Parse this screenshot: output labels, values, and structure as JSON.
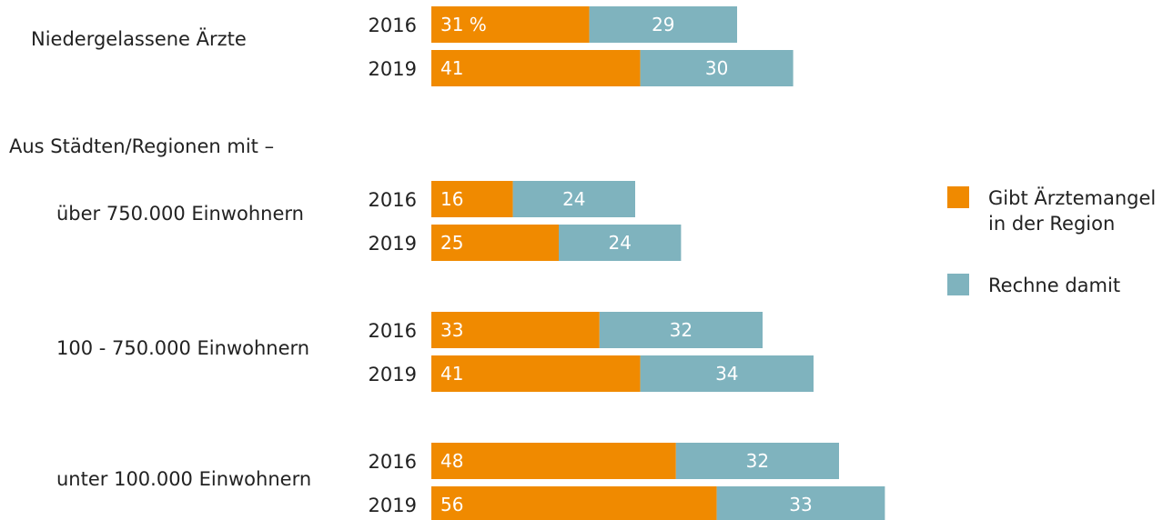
{
  "chart_data": {
    "type": "bar",
    "stacked": true,
    "orientation": "horizontal",
    "unit_label": "%",
    "colors": {
      "gibt": "#F08A00",
      "rechne": "#7FB3BE"
    },
    "legend": [
      {
        "key": "gibt",
        "lines": [
          "Gibt Ärztemangel",
          "in der Region"
        ]
      },
      {
        "key": "rechne",
        "lines": [
          "Rechne damit"
        ]
      }
    ],
    "section_header": "Aus Städten/Regionen mit –",
    "groups": [
      {
        "label": "Niedergelassene Ärzte",
        "rows": [
          {
            "year": "2016",
            "gibt": 31,
            "rechne": 29
          },
          {
            "year": "2019",
            "gibt": 41,
            "rechne": 30
          }
        ]
      },
      {
        "label": "über 750.000 Einwohnern",
        "rows": [
          {
            "year": "2016",
            "gibt": 16,
            "rechne": 24
          },
          {
            "year": "2019",
            "gibt": 25,
            "rechne": 24
          }
        ]
      },
      {
        "label": "100 - 750.000 Einwohnern",
        "rows": [
          {
            "year": "2016",
            "gibt": 33,
            "rechne": 32
          },
          {
            "year": "2019",
            "gibt": 41,
            "rechne": 34
          }
        ]
      },
      {
        "label": "unter 100.000 Einwohnern",
        "rows": [
          {
            "year": "2016",
            "gibt": 48,
            "rechne": 32
          },
          {
            "year": "2019",
            "gibt": 56,
            "rechne": 33
          }
        ]
      }
    ]
  }
}
